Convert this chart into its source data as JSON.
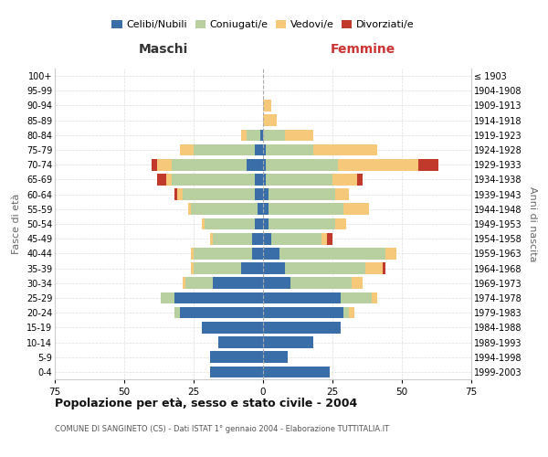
{
  "age_groups": [
    "0-4",
    "5-9",
    "10-14",
    "15-19",
    "20-24",
    "25-29",
    "30-34",
    "35-39",
    "40-44",
    "45-49",
    "50-54",
    "55-59",
    "60-64",
    "65-69",
    "70-74",
    "75-79",
    "80-84",
    "85-89",
    "90-94",
    "95-99",
    "100+"
  ],
  "birth_years": [
    "1999-2003",
    "1994-1998",
    "1989-1993",
    "1984-1988",
    "1979-1983",
    "1974-1978",
    "1969-1973",
    "1964-1968",
    "1959-1963",
    "1954-1958",
    "1949-1953",
    "1944-1948",
    "1939-1943",
    "1934-1938",
    "1929-1933",
    "1924-1928",
    "1919-1923",
    "1914-1918",
    "1909-1913",
    "1904-1908",
    "≤ 1903"
  ],
  "male": {
    "celibi": [
      19,
      19,
      16,
      22,
      30,
      32,
      18,
      8,
      4,
      4,
      3,
      2,
      3,
      3,
      6,
      3,
      1,
      0,
      0,
      0,
      0
    ],
    "coniugati": [
      0,
      0,
      0,
      0,
      2,
      5,
      10,
      17,
      21,
      14,
      18,
      24,
      26,
      30,
      27,
      22,
      5,
      0,
      0,
      0,
      0
    ],
    "vedovi": [
      0,
      0,
      0,
      0,
      0,
      0,
      1,
      1,
      1,
      1,
      1,
      1,
      2,
      2,
      5,
      5,
      2,
      0,
      0,
      0,
      0
    ],
    "divorziati": [
      0,
      0,
      0,
      0,
      0,
      0,
      0,
      0,
      0,
      0,
      0,
      0,
      1,
      3,
      2,
      0,
      0,
      0,
      0,
      0,
      0
    ]
  },
  "female": {
    "nubili": [
      24,
      9,
      18,
      28,
      29,
      28,
      10,
      8,
      6,
      3,
      2,
      2,
      2,
      1,
      1,
      1,
      0,
      0,
      0,
      0,
      0
    ],
    "coniugate": [
      0,
      0,
      0,
      0,
      2,
      11,
      22,
      29,
      38,
      18,
      24,
      27,
      24,
      24,
      26,
      17,
      8,
      0,
      0,
      0,
      0
    ],
    "vedove": [
      0,
      0,
      0,
      0,
      2,
      2,
      4,
      6,
      4,
      2,
      4,
      9,
      5,
      9,
      29,
      23,
      10,
      5,
      3,
      0,
      0
    ],
    "divorziate": [
      0,
      0,
      0,
      0,
      0,
      0,
      0,
      1,
      0,
      2,
      0,
      0,
      0,
      2,
      7,
      0,
      0,
      0,
      0,
      0,
      0
    ]
  },
  "colors": {
    "celibi": "#3a6ea8",
    "coniugati": "#b8cfa0",
    "vedovi": "#f5c87a",
    "divorziati": "#c0392b"
  },
  "title": "Popolazione per età, sesso e stato civile - 2004",
  "subtitle": "COMUNE DI SANGINETO (CS) - Dati ISTAT 1° gennaio 2004 - Elaborazione TUTTITALIA.IT",
  "xlabel_left": "Maschi",
  "xlabel_right": "Femmine",
  "ylabel_left": "Fasce di età",
  "ylabel_right": "Anni di nascita",
  "xlim": 75,
  "legend_labels": [
    "Celibi/Nubili",
    "Coniugati/e",
    "Vedovi/e",
    "Divorziati/e"
  ],
  "background_color": "#ffffff",
  "grid_color": "#cccccc"
}
